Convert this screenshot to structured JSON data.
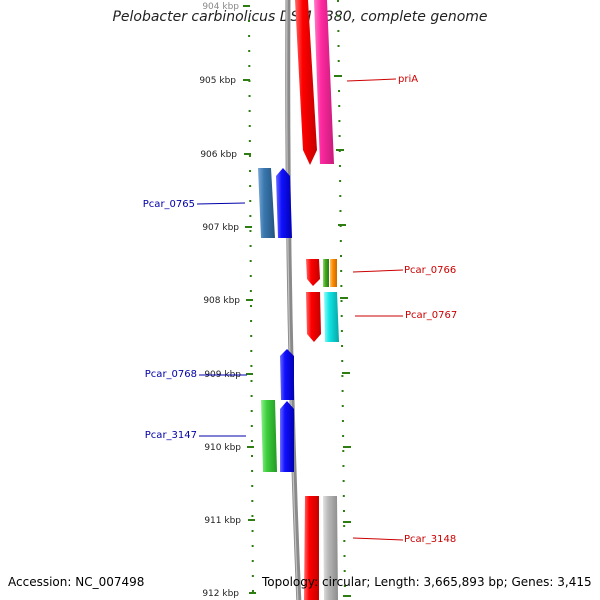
{
  "title": "Pelobacter carbinolicus DSM 2380, complete genome",
  "accession": "Accession: NC_007498",
  "summary": "Topology: circular; Length: 3,665,893 bp; Genes: 3,415",
  "ruler": {
    "ticks": [
      "904 kbp",
      "905 kbp",
      "906 kbp",
      "907 kbp",
      "908 kbp",
      "909 kbp",
      "910 kbp",
      "911 kbp",
      "912 kbp"
    ],
    "tick_color": "#2e7d12"
  },
  "gene_labels": [
    {
      "text": "priA",
      "side": "right",
      "color": "#cc0000"
    },
    {
      "text": "Pcar_0765",
      "side": "left",
      "color": "#0000aa"
    },
    {
      "text": "Pcar_0766",
      "side": "right",
      "color": "#cc0000"
    },
    {
      "text": "Pcar_0767",
      "side": "right",
      "color": "#cc0000"
    },
    {
      "text": "Pcar_0768",
      "side": "left",
      "color": "#0000aa"
    },
    {
      "text": "Pcar_3147",
      "side": "left",
      "color": "#0000aa"
    },
    {
      "text": "Pcar_3148",
      "side": "right",
      "color": "#cc0000"
    }
  ],
  "colors": {
    "red": "#ff0000",
    "pink": "#ff2aa0",
    "blue": "#1010ff",
    "steel_blue": "#3a78b0",
    "green": "#3ecf3e",
    "cyan": "#11e4e4",
    "orange": "#ff8a00",
    "gray": "#b8b8b8",
    "backbone": "#888888"
  }
}
